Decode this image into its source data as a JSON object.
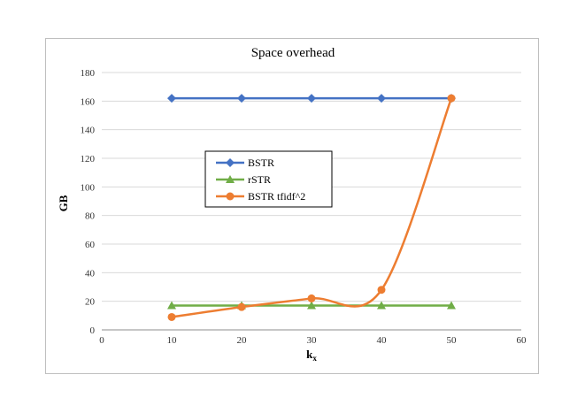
{
  "chart_data": {
    "type": "line",
    "title": "Space overhead",
    "xlabel": "k",
    "xlabel_sub": "x",
    "ylabel": "GB",
    "xlim": [
      0,
      60
    ],
    "ylim": [
      0,
      180
    ],
    "xticks": [
      0,
      10,
      20,
      30,
      40,
      50,
      60
    ],
    "yticks": [
      0,
      20,
      40,
      60,
      80,
      100,
      120,
      140,
      160,
      180
    ],
    "grid": "horizontal",
    "legend_position": "center-left",
    "series": [
      {
        "name": "BSTR",
        "x": [
          10,
          20,
          30,
          40,
          50
        ],
        "values": [
          162,
          162,
          162,
          162,
          162
        ],
        "color": "#4472c4",
        "marker": "diamond",
        "smooth": false
      },
      {
        "name": "rSTR",
        "x": [
          10,
          20,
          30,
          40,
          50
        ],
        "values": [
          17,
          17,
          17,
          17,
          17
        ],
        "color": "#70ad47",
        "marker": "triangle",
        "smooth": false
      },
      {
        "name": "BSTR tfidf^2",
        "x": [
          10,
          20,
          30,
          40,
          50
        ],
        "values": [
          9,
          16,
          22,
          28,
          162
        ],
        "color": "#ed7d31",
        "marker": "circle",
        "smooth": true
      }
    ]
  }
}
